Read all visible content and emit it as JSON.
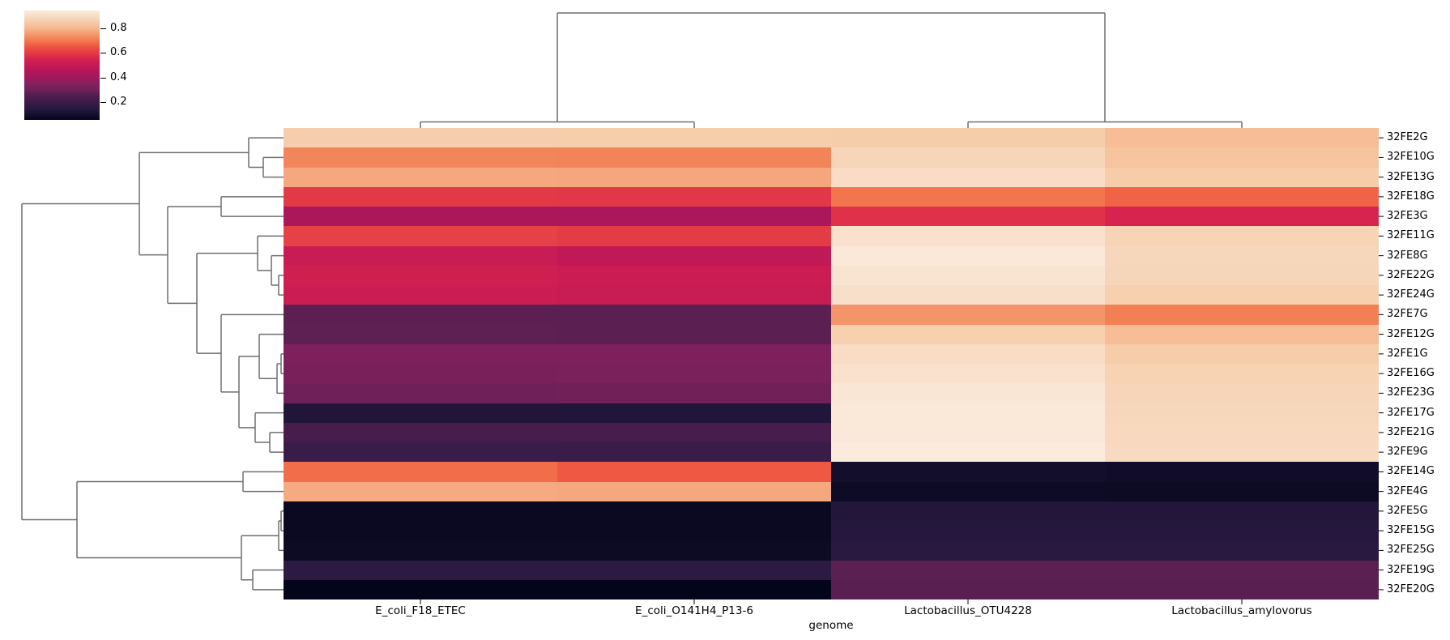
{
  "figure": {
    "background": "#ffffff"
  },
  "colorbar": {
    "tick_labels": [
      "0.8",
      "0.6",
      "0.4",
      "0.2"
    ],
    "tick_values": [
      0.8,
      0.6,
      0.4,
      0.2
    ]
  },
  "chart_data": {
    "type": "heatmap",
    "style": "seaborn-clustermap",
    "title": "",
    "xlabel": "genome",
    "ylabel": "",
    "colormap": "rocket",
    "vmin": 0.055,
    "vmax": 0.945,
    "legend_position": "top-left colorbar",
    "columns": [
      "E_coli_F18_ETEC",
      "E_coli_O141H4_P13-6",
      "Lactobacillus_OTU4228",
      "Lactobacillus_amylovorus"
    ],
    "rows": [
      "32FE2G",
      "32FE10G",
      "32FE13G",
      "32FE18G",
      "32FE3G",
      "32FE11G",
      "32FE8G",
      "32FE22G",
      "32FE24G",
      "32FE7G",
      "32FE12G",
      "32FE1G",
      "32FE16G",
      "32FE23G",
      "32FE17G",
      "32FE21G",
      "32FE9G",
      "32FE14G",
      "32FE4G",
      "32FE5G",
      "32FE15G",
      "32FE25G",
      "32FE19G",
      "32FE20G"
    ],
    "values": [
      [
        0.86,
        0.858,
        0.855,
        0.815
      ],
      [
        0.72,
        0.718,
        0.88,
        0.835
      ],
      [
        0.775,
        0.773,
        0.9,
        0.855
      ],
      [
        0.6,
        0.595,
        0.695,
        0.67
      ],
      [
        0.43,
        0.428,
        0.585,
        0.555
      ],
      [
        0.615,
        0.605,
        0.915,
        0.875
      ],
      [
        0.51,
        0.49,
        0.935,
        0.885
      ],
      [
        0.53,
        0.52,
        0.925,
        0.88
      ],
      [
        0.52,
        0.51,
        0.91,
        0.865
      ],
      [
        0.27,
        0.268,
        0.745,
        0.71
      ],
      [
        0.272,
        0.27,
        0.865,
        0.815
      ],
      [
        0.33,
        0.332,
        0.9,
        0.855
      ],
      [
        0.32,
        0.322,
        0.915,
        0.87
      ],
      [
        0.3,
        0.302,
        0.93,
        0.88
      ],
      [
        0.13,
        0.13,
        0.935,
        0.885
      ],
      [
        0.23,
        0.228,
        0.94,
        0.89
      ],
      [
        0.2,
        0.198,
        0.945,
        0.895
      ],
      [
        0.685,
        0.655,
        0.09,
        0.085
      ],
      [
        0.78,
        0.775,
        0.08,
        0.075
      ],
      [
        0.07,
        0.07,
        0.135,
        0.135
      ],
      [
        0.07,
        0.07,
        0.14,
        0.14
      ],
      [
        0.075,
        0.075,
        0.15,
        0.15
      ],
      [
        0.16,
        0.16,
        0.27,
        0.27
      ],
      [
        0.055,
        0.055,
        0.265,
        0.265
      ]
    ],
    "color_ramp": [
      [
        0.055,
        "#05051A"
      ],
      [
        0.1,
        "#161030"
      ],
      [
        0.15,
        "#291940"
      ],
      [
        0.2,
        "#3A1C4A"
      ],
      [
        0.25,
        "#4F1E4E"
      ],
      [
        0.3,
        "#702058"
      ],
      [
        0.35,
        "#86205F"
      ],
      [
        0.4,
        "#A1185C"
      ],
      [
        0.45,
        "#B31659"
      ],
      [
        0.5,
        "#C41A55"
      ],
      [
        0.55,
        "#D6224F"
      ],
      [
        0.6,
        "#E33947"
      ],
      [
        0.65,
        "#EE5542"
      ],
      [
        0.7,
        "#F3794F"
      ],
      [
        0.75,
        "#F4976C"
      ],
      [
        0.8,
        "#F6B78F"
      ],
      [
        0.85,
        "#F6CBA7"
      ],
      [
        0.9,
        "#F8DCC5"
      ],
      [
        0.945,
        "#FAEBDD"
      ]
    ],
    "dendrogram_line_color": "#6e6e6e",
    "tick_color": "#000000",
    "row_dendrogram": {
      "merges": [
        {
          "id": "m0",
          "a": "L1",
          "b": "L2",
          "pos": 325
        },
        {
          "id": "m1",
          "a": "L0",
          "b": "m0",
          "pos": 307
        },
        {
          "id": "m2",
          "a": "L7",
          "b": "L8",
          "pos": 344
        },
        {
          "id": "m3",
          "a": "L6",
          "b": "m2",
          "pos": 335
        },
        {
          "id": "m4",
          "a": "L5",
          "b": "m3",
          "pos": 318
        },
        {
          "id": "m5",
          "a": "L3",
          "b": "L4",
          "pos": 273
        },
        {
          "id": "m6",
          "a": "L11",
          "b": "L12",
          "pos": 347
        },
        {
          "id": "m7",
          "a": "m6",
          "b": "L13",
          "pos": 342
        },
        {
          "id": "m8",
          "a": "L10",
          "b": "m7",
          "pos": 320
        },
        {
          "id": "m9",
          "a": "L15",
          "b": "L16",
          "pos": 333
        },
        {
          "id": "m10",
          "a": "L14",
          "b": "m9",
          "pos": 315
        },
        {
          "id": "m11",
          "a": "m8",
          "b": "m10",
          "pos": 295
        },
        {
          "id": "m12",
          "a": "L9",
          "b": "m11",
          "pos": 273
        },
        {
          "id": "m13",
          "a": "m4",
          "b": "m12",
          "pos": 243
        },
        {
          "id": "m14",
          "a": "m5",
          "b": "m13",
          "pos": 207
        },
        {
          "id": "m15",
          "a": "m1",
          "b": "m14",
          "pos": 172
        },
        {
          "id": "m16",
          "a": "L17",
          "b": "L18",
          "pos": 300
        },
        {
          "id": "m17",
          "a": "L19",
          "b": "L20",
          "pos": 347
        },
        {
          "id": "m18",
          "a": "m17",
          "b": "L21",
          "pos": 344
        },
        {
          "id": "m19",
          "a": "L22",
          "b": "L23",
          "pos": 312
        },
        {
          "id": "m20",
          "a": "m18",
          "b": "m19",
          "pos": 298
        },
        {
          "id": "m21",
          "a": "m16",
          "b": "m20",
          "pos": 95
        },
        {
          "id": "m22",
          "a": "m15",
          "b": "m21",
          "pos": 27
        }
      ]
    },
    "col_dendrogram": {
      "merges": [
        {
          "id": "c0",
          "a": "L0",
          "b": "L1",
          "pos": 150.5
        },
        {
          "id": "c1",
          "a": "L2",
          "b": "L3",
          "pos": 150.5
        },
        {
          "id": "c2",
          "a": "c0",
          "b": "c1",
          "pos": 16
        }
      ]
    }
  }
}
